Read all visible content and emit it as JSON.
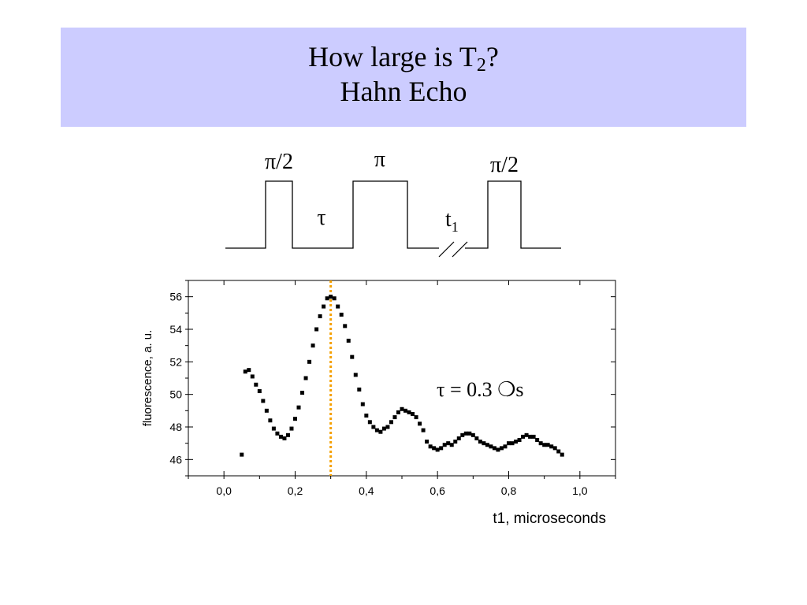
{
  "slide": {
    "title_line1_main": "How large is T",
    "title_line1_sub": "2",
    "title_line1_end": "?",
    "title_line2": "Hahn Echo",
    "background_color": "#ccccff"
  },
  "pulse_diagram": {
    "pulse1_label": "π/2",
    "pulse2_label": "π",
    "pulse3_label": "π/2",
    "tau_label": "τ",
    "t1_label_main": "t",
    "t1_label_sub": "1"
  },
  "chart_data": {
    "type": "scatter",
    "xlabel": "t1, microseconds",
    "ylabel": "fluorescence, a. u.",
    "xlim": [
      -0.1,
      1.1
    ],
    "ylim": [
      45.0,
      57.0
    ],
    "x_ticks": [
      0.0,
      0.2,
      0.4,
      0.6,
      0.8,
      1.0
    ],
    "x_tick_labels": [
      "0,0",
      "0,2",
      "0,4",
      "0,6",
      "0,8",
      "1,0"
    ],
    "y_ticks": [
      46,
      48,
      50,
      52,
      54,
      56
    ],
    "y_tick_labels": [
      "46",
      "48",
      "50",
      "52",
      "54",
      "56"
    ],
    "annotation": "τ = 0.3 ❍s",
    "vline_x": 0.3,
    "vline_color": "#f5a000",
    "marker_color": "#000000",
    "points": [
      [
        0.05,
        46.3
      ],
      [
        0.06,
        51.4
      ],
      [
        0.07,
        51.5
      ],
      [
        0.08,
        51.1
      ],
      [
        0.09,
        50.6
      ],
      [
        0.1,
        50.2
      ],
      [
        0.11,
        49.6
      ],
      [
        0.12,
        49.0
      ],
      [
        0.13,
        48.4
      ],
      [
        0.14,
        47.9
      ],
      [
        0.15,
        47.6
      ],
      [
        0.16,
        47.4
      ],
      [
        0.17,
        47.3
      ],
      [
        0.18,
        47.5
      ],
      [
        0.19,
        47.9
      ],
      [
        0.2,
        48.5
      ],
      [
        0.21,
        49.2
      ],
      [
        0.22,
        50.1
      ],
      [
        0.23,
        51.0
      ],
      [
        0.24,
        52.0
      ],
      [
        0.25,
        53.0
      ],
      [
        0.26,
        54.0
      ],
      [
        0.27,
        54.8
      ],
      [
        0.28,
        55.4
      ],
      [
        0.29,
        55.9
      ],
      [
        0.3,
        56.0
      ],
      [
        0.31,
        55.9
      ],
      [
        0.32,
        55.4
      ],
      [
        0.33,
        54.9
      ],
      [
        0.34,
        54.2
      ],
      [
        0.35,
        53.3
      ],
      [
        0.36,
        52.3
      ],
      [
        0.37,
        51.2
      ],
      [
        0.38,
        50.3
      ],
      [
        0.39,
        49.4
      ],
      [
        0.4,
        48.7
      ],
      [
        0.41,
        48.3
      ],
      [
        0.42,
        48.0
      ],
      [
        0.43,
        47.8
      ],
      [
        0.44,
        47.7
      ],
      [
        0.45,
        47.9
      ],
      [
        0.46,
        48.0
      ],
      [
        0.47,
        48.3
      ],
      [
        0.48,
        48.6
      ],
      [
        0.49,
        48.9
      ],
      [
        0.5,
        49.1
      ],
      [
        0.51,
        49.0
      ],
      [
        0.52,
        48.9
      ],
      [
        0.53,
        48.8
      ],
      [
        0.54,
        48.6
      ],
      [
        0.55,
        48.2
      ],
      [
        0.56,
        47.8
      ],
      [
        0.57,
        47.1
      ],
      [
        0.58,
        46.8
      ],
      [
        0.59,
        46.7
      ],
      [
        0.6,
        46.6
      ],
      [
        0.61,
        46.7
      ],
      [
        0.62,
        46.9
      ],
      [
        0.63,
        47.0
      ],
      [
        0.64,
        46.9
      ],
      [
        0.65,
        47.1
      ],
      [
        0.66,
        47.3
      ],
      [
        0.67,
        47.5
      ],
      [
        0.68,
        47.6
      ],
      [
        0.69,
        47.6
      ],
      [
        0.7,
        47.5
      ],
      [
        0.71,
        47.3
      ],
      [
        0.72,
        47.1
      ],
      [
        0.73,
        47.0
      ],
      [
        0.74,
        46.9
      ],
      [
        0.75,
        46.8
      ],
      [
        0.76,
        46.7
      ],
      [
        0.77,
        46.6
      ],
      [
        0.78,
        46.7
      ],
      [
        0.79,
        46.8
      ],
      [
        0.8,
        47.0
      ],
      [
        0.81,
        47.0
      ],
      [
        0.82,
        47.1
      ],
      [
        0.83,
        47.2
      ],
      [
        0.84,
        47.4
      ],
      [
        0.85,
        47.5
      ],
      [
        0.86,
        47.4
      ],
      [
        0.87,
        47.4
      ],
      [
        0.88,
        47.2
      ],
      [
        0.89,
        47.0
      ],
      [
        0.9,
        46.9
      ],
      [
        0.91,
        46.9
      ],
      [
        0.92,
        46.8
      ],
      [
        0.93,
        46.7
      ],
      [
        0.94,
        46.5
      ],
      [
        0.95,
        46.3
      ]
    ]
  }
}
